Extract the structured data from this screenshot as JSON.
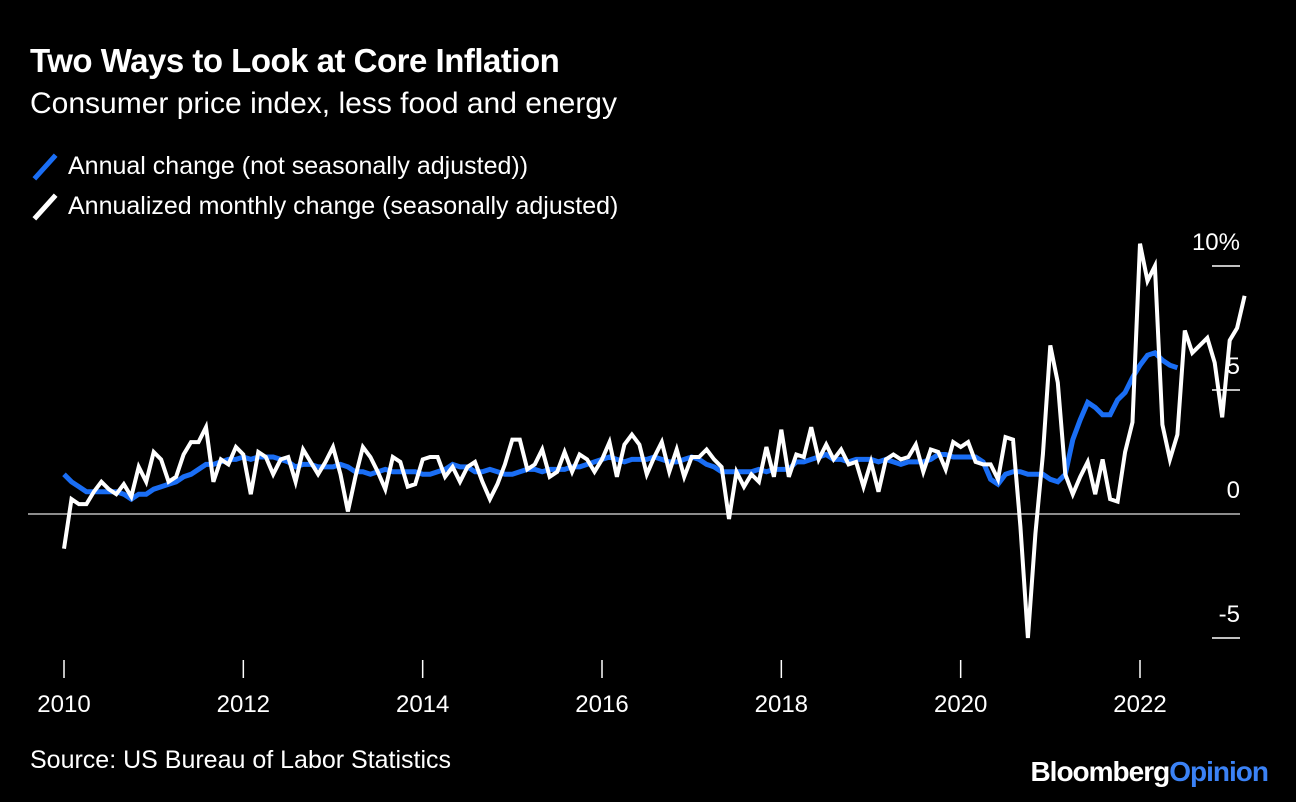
{
  "header": {
    "title": "Two Ways to Look at Core Inflation",
    "subtitle": "Consumer price index, less food and energy"
  },
  "footer": {
    "source": "Source: US Bureau of Labor Statistics",
    "brand_main": "Bloomberg",
    "brand_accent": "Opinion"
  },
  "colors": {
    "background": "#000000",
    "annual": "#1a6ef5",
    "monthly": "#ffffff",
    "brand_accent": "#3b82f6"
  },
  "chart_data": {
    "type": "line",
    "title": "Two Ways to Look at Core Inflation",
    "subtitle": "Consumer price index, less food and energy",
    "legend_position": "top-left",
    "grid": false,
    "x_axis": {
      "range": [
        2010,
        2022.5
      ],
      "ticks": [
        2010,
        2012,
        2014,
        2016,
        2018,
        2020,
        2022
      ],
      "tick_labels": [
        "2010",
        "2012",
        "2014",
        "2016",
        "2018",
        "2020",
        "2022"
      ]
    },
    "y_axis": {
      "range": [
        -6,
        11
      ],
      "ticks": [
        10,
        5,
        0,
        -5
      ],
      "tick_labels": [
        "10%",
        "5",
        "0",
        "-5"
      ],
      "position": "right"
    },
    "series": [
      {
        "name": "Annual change (not seasonally adjusted))",
        "color": "#1a6ef5",
        "start": 2010,
        "step_months": 1,
        "values": [
          1.6,
          1.3,
          1.1,
          0.9,
          0.9,
          0.9,
          0.9,
          0.9,
          0.8,
          0.6,
          0.8,
          0.8,
          1.0,
          1.1,
          1.2,
          1.3,
          1.5,
          1.6,
          1.8,
          2.0,
          2.0,
          2.1,
          2.2,
          2.2,
          2.3,
          2.2,
          2.3,
          2.3,
          2.3,
          2.2,
          2.1,
          1.9,
          2.0,
          2.0,
          1.9,
          1.9,
          1.9,
          2.0,
          1.9,
          1.7,
          1.7,
          1.6,
          1.7,
          1.8,
          1.7,
          1.7,
          1.7,
          1.7,
          1.6,
          1.6,
          1.7,
          1.8,
          2.0,
          1.9,
          1.9,
          1.7,
          1.7,
          1.8,
          1.7,
          1.6,
          1.6,
          1.7,
          1.8,
          1.8,
          1.7,
          1.8,
          1.8,
          1.8,
          1.9,
          1.9,
          2.0,
          2.1,
          2.2,
          2.3,
          2.2,
          2.1,
          2.2,
          2.2,
          2.2,
          2.3,
          2.2,
          2.1,
          2.1,
          2.2,
          2.3,
          2.2,
          2.0,
          1.9,
          1.7,
          1.7,
          1.7,
          1.7,
          1.7,
          1.8,
          1.7,
          1.8,
          1.8,
          1.8,
          2.1,
          2.1,
          2.2,
          2.3,
          2.4,
          2.2,
          2.2,
          2.1,
          2.2,
          2.2,
          2.2,
          2.1,
          2.2,
          2.1,
          2.0,
          2.1,
          2.1,
          2.1,
          2.2,
          2.4,
          2.4,
          2.3,
          2.3,
          2.3,
          2.3,
          2.1,
          1.4,
          1.2,
          1.6,
          1.7,
          1.7,
          1.6,
          1.6,
          1.6,
          1.4,
          1.3,
          1.6,
          3.0,
          3.8,
          4.5,
          4.3,
          4.0,
          4.0,
          4.6,
          4.9,
          5.5,
          6.0,
          6.4,
          6.5,
          6.2,
          6.0,
          5.9
        ]
      },
      {
        "name": "Annualized monthly change (seasonally adjusted)",
        "color": "#ffffff",
        "start": 2010,
        "step_months": 1,
        "values": [
          -1.4,
          0.6,
          0.4,
          0.4,
          0.9,
          1.3,
          1.0,
          0.8,
          1.2,
          0.7,
          1.9,
          1.3,
          2.5,
          2.2,
          1.3,
          1.5,
          2.4,
          2.9,
          2.9,
          3.5,
          1.3,
          2.2,
          2.0,
          2.7,
          2.4,
          0.8,
          2.5,
          2.3,
          1.6,
          2.2,
          2.3,
          1.3,
          2.6,
          2.1,
          1.6,
          2.1,
          2.7,
          1.6,
          0.1,
          1.5,
          2.7,
          2.3,
          1.7,
          1.0,
          2.3,
          2.1,
          1.1,
          1.2,
          2.2,
          2.3,
          2.3,
          1.5,
          1.9,
          1.3,
          1.9,
          2.1,
          1.3,
          0.6,
          1.2,
          2.0,
          3.0,
          3.0,
          1.8,
          2.0,
          2.6,
          1.5,
          1.7,
          2.5,
          1.7,
          2.4,
          2.2,
          1.7,
          2.2,
          2.9,
          1.5,
          2.8,
          3.2,
          2.8,
          1.6,
          2.3,
          2.9,
          1.7,
          2.6,
          1.5,
          2.3,
          2.3,
          2.6,
          2.2,
          1.9,
          -0.2,
          1.7,
          1.1,
          1.6,
          1.3,
          2.7,
          1.5,
          3.4,
          1.5,
          2.4,
          2.3,
          3.5,
          2.2,
          2.8,
          2.2,
          2.6,
          2.0,
          2.1,
          1.1,
          2.1,
          0.9,
          2.2,
          2.4,
          2.2,
          2.3,
          2.8,
          1.7,
          2.6,
          2.5,
          1.8,
          2.9,
          2.7,
          2.9,
          2.1,
          2.0,
          2.0,
          1.4,
          3.1,
          3.0,
          -0.5,
          -5.0,
          -0.8,
          2.4,
          6.8,
          5.3,
          1.6,
          0.8,
          1.5,
          2.1,
          0.8,
          2.2,
          0.6,
          0.5,
          2.5,
          3.7,
          10.9,
          9.4,
          10.0,
          3.6,
          2.2,
          3.2,
          7.4,
          6.5,
          6.8,
          7.1,
          6.1,
          3.9,
          7.0,
          7.5,
          8.8
        ]
      }
    ]
  }
}
